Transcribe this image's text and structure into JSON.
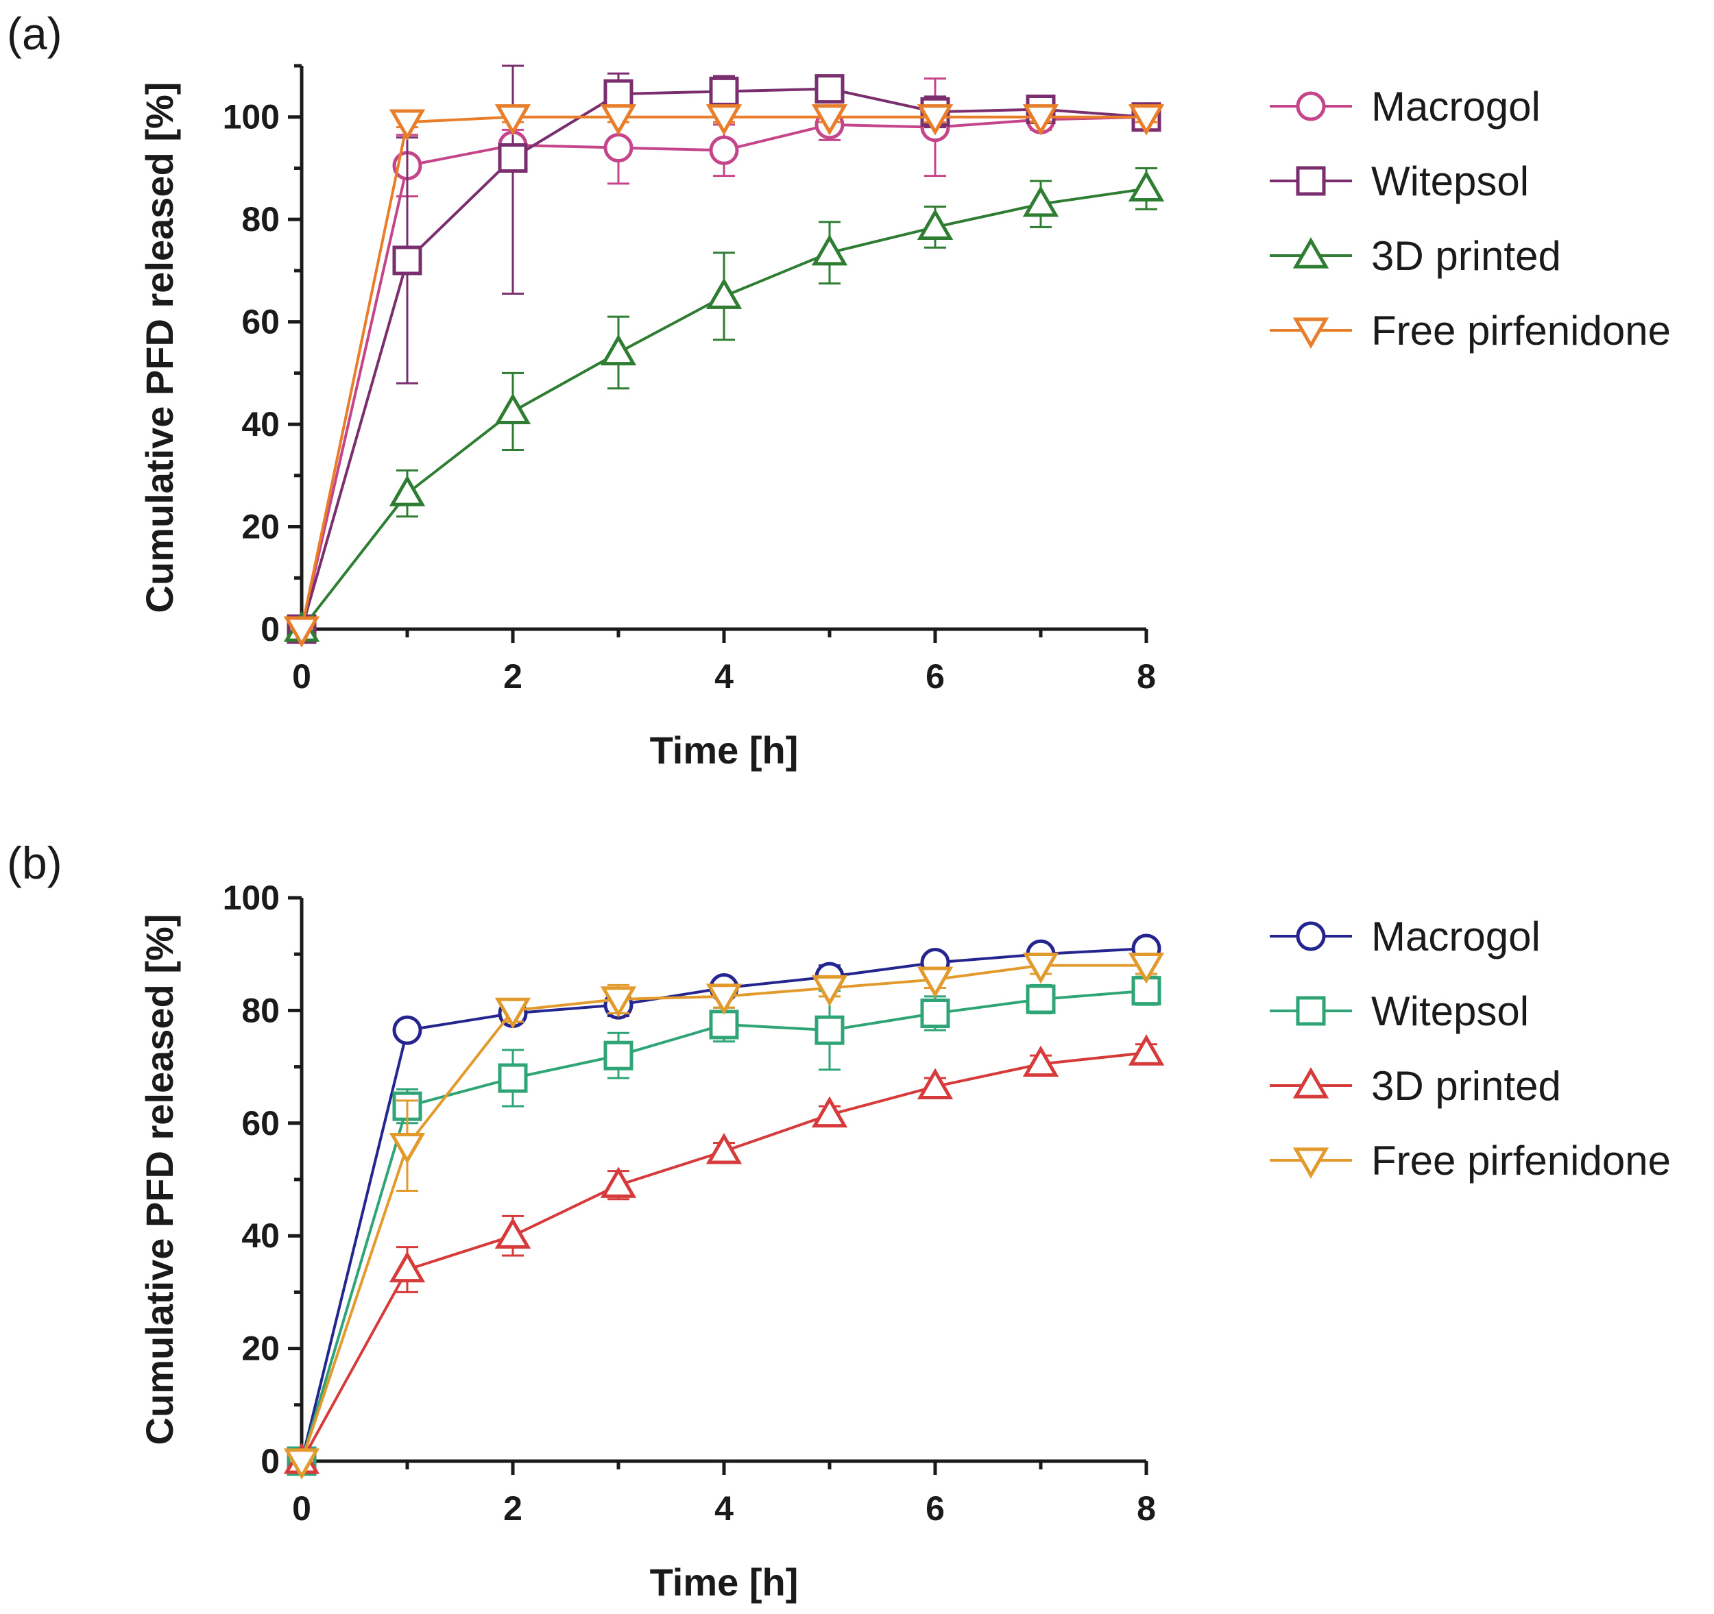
{
  "chart_data": [
    {
      "type": "line",
      "panel_label": "(a)",
      "xlabel": "Time [h]",
      "ylabel": "Cumulative PFD released [%]",
      "xlim": [
        0,
        8
      ],
      "ylim": [
        0,
        110
      ],
      "xticks": [
        0,
        2,
        4,
        6,
        8
      ],
      "yticks": [
        0,
        20,
        40,
        60,
        80,
        100
      ],
      "grid": false,
      "legend_position": "right",
      "series": [
        {
          "name": "Macrogol",
          "color": "#c5458a",
          "marker": "circle",
          "x": [
            0,
            1,
            2,
            3,
            4,
            5,
            6,
            7,
            8
          ],
          "y": [
            0,
            90.5,
            94.5,
            94,
            93.5,
            98.5,
            98,
            99.5,
            100
          ],
          "err": [
            0,
            6,
            3,
            7,
            5,
            3,
            9.5,
            2,
            1
          ]
        },
        {
          "name": "Witepsol",
          "color": "#7a2e6e",
          "marker": "square",
          "x": [
            0,
            1,
            2,
            3,
            4,
            5,
            6,
            7,
            8
          ],
          "y": [
            0,
            72,
            92,
            104.5,
            105,
            105.5,
            101,
            101.5,
            100
          ],
          "err": [
            0,
            24,
            26.5,
            4,
            3,
            2,
            3,
            2,
            1
          ]
        },
        {
          "name": "3D printed",
          "color": "#2e7d32",
          "marker": "triangle-up",
          "x": [
            0,
            1,
            2,
            3,
            4,
            5,
            6,
            7,
            8
          ],
          "y": [
            0,
            26.5,
            42.5,
            54,
            65,
            73.5,
            78.5,
            83,
            86
          ],
          "err": [
            0,
            4.5,
            7.5,
            7,
            8.5,
            6,
            4,
            4.5,
            4
          ]
        },
        {
          "name": "Free pirfenidone",
          "color": "#e87d2a",
          "marker": "triangle-down",
          "x": [
            0,
            1,
            2,
            3,
            4,
            5,
            6,
            7,
            8
          ],
          "y": [
            0,
            99,
            100,
            100,
            100,
            100,
            100,
            100,
            100
          ],
          "err": [
            0,
            1,
            1,
            1,
            1,
            1,
            1,
            1,
            1
          ]
        }
      ]
    },
    {
      "type": "line",
      "panel_label": "(b)",
      "xlabel": "Time [h]",
      "ylabel": "Cumulative PFD released [%]",
      "xlim": [
        0,
        8
      ],
      "ylim": [
        0,
        100
      ],
      "xticks": [
        0,
        2,
        4,
        6,
        8
      ],
      "yticks": [
        0,
        20,
        40,
        60,
        80,
        100
      ],
      "grid": false,
      "legend_position": "right",
      "series": [
        {
          "name": "Macrogol",
          "color": "#25258f",
          "marker": "circle",
          "x": [
            0,
            1,
            2,
            3,
            4,
            5,
            6,
            7,
            8
          ],
          "y": [
            0,
            76.5,
            79.5,
            81,
            84,
            86,
            88.5,
            90,
            91
          ],
          "err": [
            0,
            1.5,
            1.5,
            2,
            1.5,
            2,
            1.5,
            1.5,
            1.5
          ]
        },
        {
          "name": "Witepsol",
          "color": "#2fa577",
          "marker": "square",
          "x": [
            0,
            1,
            2,
            3,
            4,
            5,
            6,
            7,
            8
          ],
          "y": [
            0,
            63,
            68,
            72,
            77.5,
            76.5,
            79.5,
            82,
            83.5
          ],
          "err": [
            0,
            3,
            5,
            4,
            3,
            7,
            3,
            2.5,
            2.5
          ]
        },
        {
          "name": "3D printed",
          "color": "#d63a3a",
          "marker": "triangle-up",
          "x": [
            0,
            1,
            2,
            3,
            4,
            5,
            6,
            7,
            8
          ],
          "y": [
            0,
            34,
            40,
            49,
            55,
            61.5,
            66.5,
            70.5,
            72.5
          ],
          "err": [
            0,
            4,
            3.5,
            2.5,
            1.5,
            1.5,
            1.5,
            1.5,
            1.5
          ]
        },
        {
          "name": "Free pirfenidone",
          "color": "#e39a2c",
          "marker": "triangle-down",
          "x": [
            0,
            1,
            2,
            3,
            4,
            5,
            6,
            7,
            8
          ],
          "y": [
            0,
            56,
            80,
            82,
            82.5,
            84,
            85.5,
            88,
            88
          ],
          "err": [
            0,
            8,
            2,
            2.5,
            2,
            1.5,
            1.5,
            1.5,
            1.5
          ]
        }
      ]
    }
  ]
}
